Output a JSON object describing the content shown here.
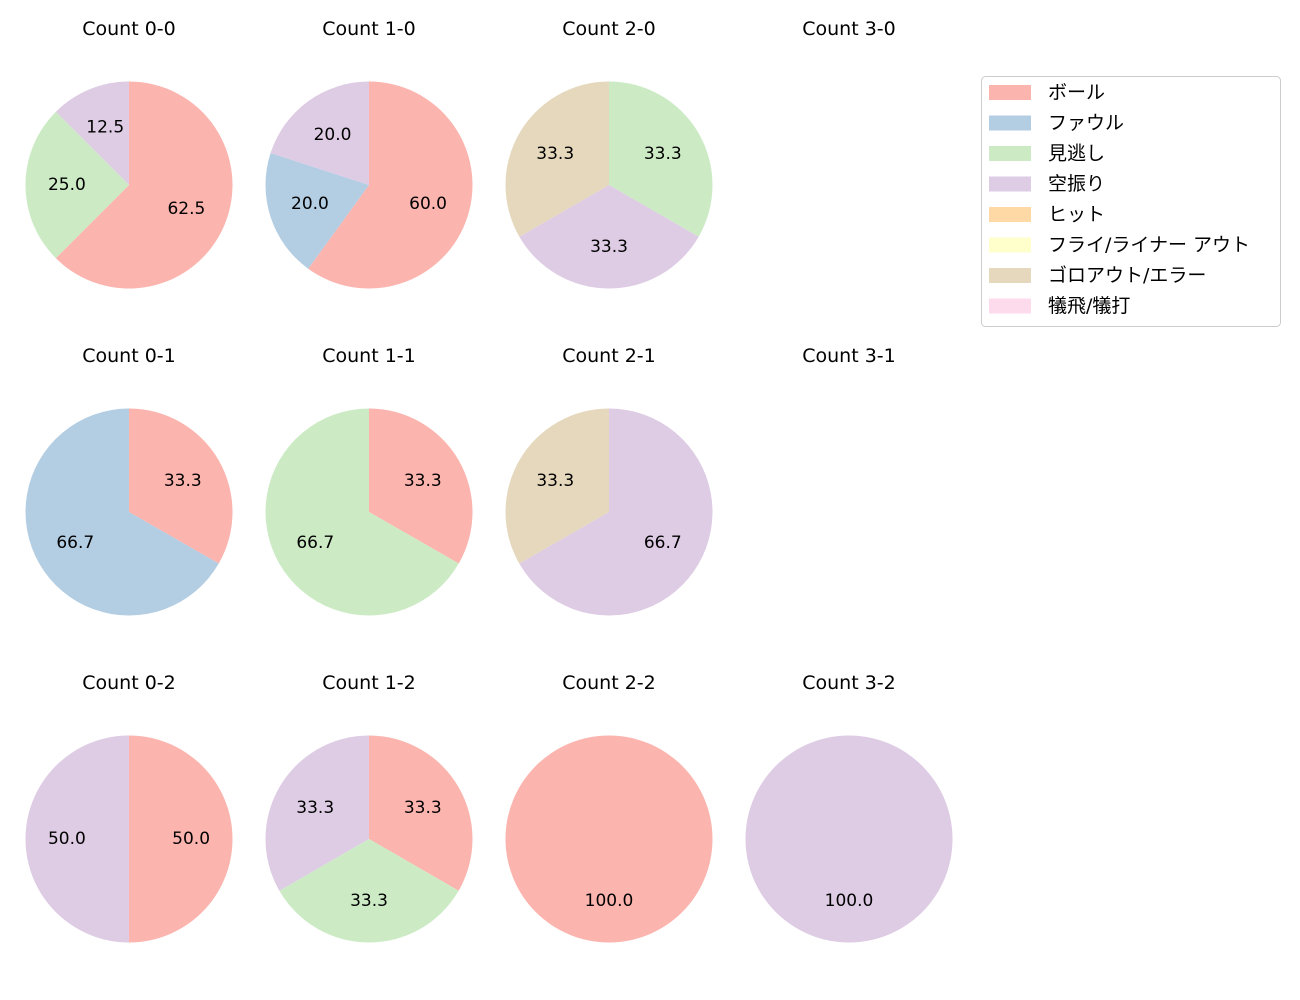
{
  "chart_data": {
    "type": "pie",
    "start": "top",
    "direction": "clockwise",
    "legend": {
      "placement": "top-right",
      "entries": [
        {
          "label": "ボール",
          "color": "#fbb4ae"
        },
        {
          "label": "ファウル",
          "color": "#b3cde3"
        },
        {
          "label": "見逃し",
          "color": "#ccebc5"
        },
        {
          "label": "空振り",
          "color": "#decbe4"
        },
        {
          "label": "ヒット",
          "color": "#fed9a6"
        },
        {
          "label": "フライ/ライナー アウト",
          "color": "#ffffcc"
        },
        {
          "label": "ゴロアウト/エラー",
          "color": "#e5d8bd"
        },
        {
          "label": "犠飛/犠打",
          "color": "#fddaec"
        }
      ]
    },
    "pies": [
      {
        "title": "Count 0-0",
        "slices": [
          {
            "cat": 0,
            "value": 62.5,
            "label": "62.5"
          },
          {
            "cat": 2,
            "value": 25.0,
            "label": "25.0"
          },
          {
            "cat": 3,
            "value": 12.5,
            "label": "12.5"
          }
        ]
      },
      {
        "title": "Count 1-0",
        "slices": [
          {
            "cat": 0,
            "value": 60.0,
            "label": "60.0"
          },
          {
            "cat": 1,
            "value": 20.0,
            "label": "20.0"
          },
          {
            "cat": 3,
            "value": 20.0,
            "label": "20.0"
          }
        ]
      },
      {
        "title": "Count 2-0",
        "slices": [
          {
            "cat": 2,
            "value": 33.3,
            "label": "33.3"
          },
          {
            "cat": 3,
            "value": 33.3,
            "label": "33.3"
          },
          {
            "cat": 6,
            "value": 33.3,
            "label": "33.3"
          }
        ]
      },
      {
        "title": "Count 3-0",
        "slices": []
      },
      {
        "title": "Count 0-1",
        "slices": [
          {
            "cat": 0,
            "value": 33.3,
            "label": "33.3"
          },
          {
            "cat": 1,
            "value": 66.7,
            "label": "66.7"
          }
        ]
      },
      {
        "title": "Count 1-1",
        "slices": [
          {
            "cat": 0,
            "value": 33.3,
            "label": "33.3"
          },
          {
            "cat": 2,
            "value": 66.7,
            "label": "66.7"
          }
        ]
      },
      {
        "title": "Count 2-1",
        "slices": [
          {
            "cat": 3,
            "value": 66.7,
            "label": "66.7"
          },
          {
            "cat": 6,
            "value": 33.3,
            "label": "33.3"
          }
        ]
      },
      {
        "title": "Count 3-1",
        "slices": []
      },
      {
        "title": "Count 0-2",
        "slices": [
          {
            "cat": 0,
            "value": 50.0,
            "label": "50.0"
          },
          {
            "cat": 3,
            "value": 50.0,
            "label": "50.0"
          }
        ]
      },
      {
        "title": "Count 1-2",
        "slices": [
          {
            "cat": 0,
            "value": 33.3,
            "label": "33.3"
          },
          {
            "cat": 2,
            "value": 33.3,
            "label": "33.3"
          },
          {
            "cat": 3,
            "value": 33.3,
            "label": "33.3"
          }
        ]
      },
      {
        "title": "Count 2-2",
        "slices": [
          {
            "cat": 0,
            "value": 100.0,
            "label": "100.0"
          }
        ]
      },
      {
        "title": "Count 3-2",
        "slices": [
          {
            "cat": 3,
            "value": 100.0,
            "label": "100.0"
          }
        ]
      }
    ]
  }
}
